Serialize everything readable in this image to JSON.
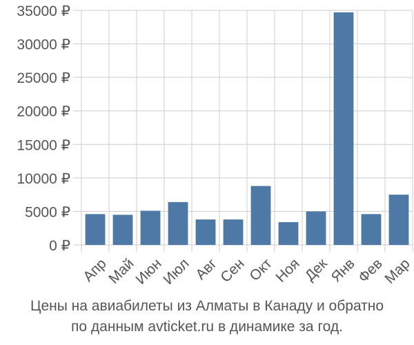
{
  "colors": {
    "bar": "#4e79a7",
    "grid": "#cccccc",
    "tick_text": "#555555",
    "caption_text": "#555555"
  },
  "caption": {
    "line1": "Цены на авиабилеты из Алматы в Канаду и обратно",
    "line2": "по данным avticket.ru в динамике за год."
  },
  "chart_data": {
    "type": "bar",
    "categories": [
      "Апр",
      "Май",
      "Июн",
      "Июл",
      "Авг",
      "Сен",
      "Окт",
      "Ноя",
      "Дек",
      "Янв",
      "Фев",
      "Мар"
    ],
    "values": [
      4600,
      4500,
      5100,
      6400,
      3800,
      3800,
      8800,
      3400,
      5000,
      34700,
      4600,
      7500
    ],
    "y_ticks": [
      0,
      5000,
      10000,
      15000,
      20000,
      25000,
      30000,
      35000
    ],
    "y_tick_labels": [
      "0 ₽",
      "5000 ₽",
      "10000 ₽",
      "15000 ₽",
      "20000 ₽",
      "25000 ₽",
      "30000 ₽",
      "35000 ₽"
    ],
    "ylim": [
      0,
      35000
    ],
    "grid": true,
    "title": "",
    "xlabel": "",
    "ylabel": ""
  }
}
